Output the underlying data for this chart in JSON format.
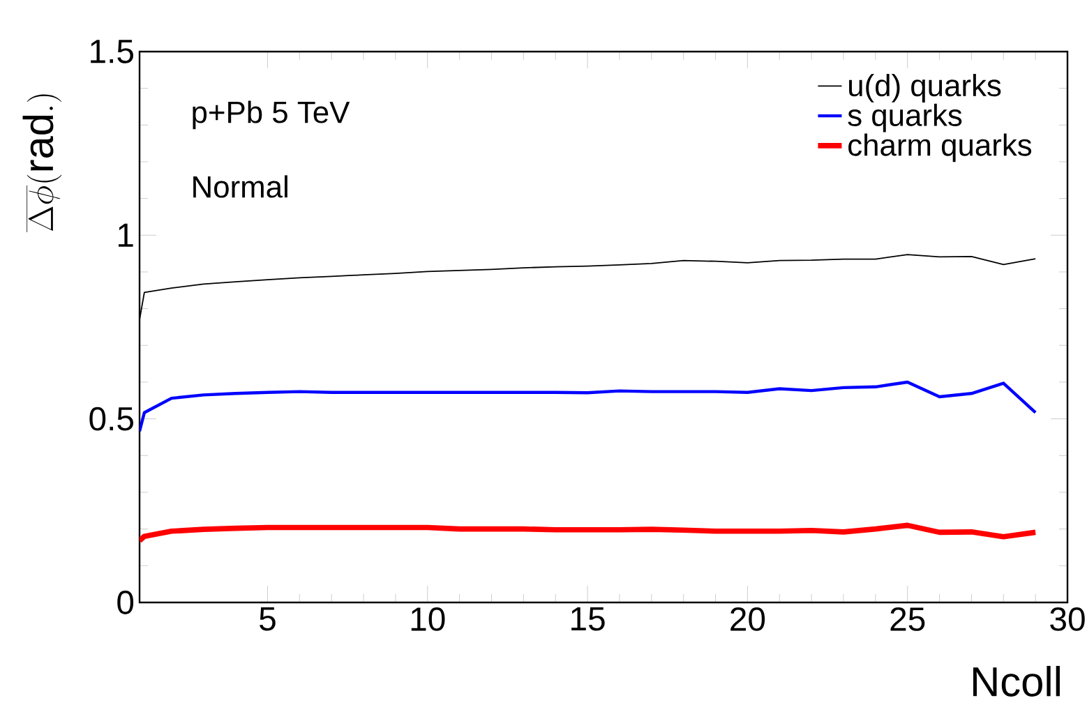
{
  "chart_data": {
    "type": "line",
    "xlabel": "Ncoll",
    "ylabel": "\\overline{\\Delta\\phi}(\\mathrm{rad.})",
    "annotations": [
      "p+Pb    5 TeV",
      "Normal"
    ],
    "x": [
      1,
      1.15,
      2,
      3,
      4,
      5,
      6,
      7,
      8,
      9,
      10,
      11,
      12,
      13,
      14,
      15,
      16,
      17,
      18,
      19,
      20,
      21,
      22,
      23,
      24,
      25,
      26,
      27,
      28,
      29
    ],
    "series": [
      {
        "name": "u(d) quarks",
        "color": "#000000",
        "values": [
          0.77,
          0.844,
          0.856,
          0.867,
          0.873,
          0.879,
          0.884,
          0.888,
          0.892,
          0.896,
          0.901,
          0.904,
          0.907,
          0.911,
          0.914,
          0.916,
          0.919,
          0.923,
          0.931,
          0.929,
          0.925,
          0.931,
          0.932,
          0.935,
          0.935,
          0.947,
          0.941,
          0.942,
          0.92,
          0.936
        ]
      },
      {
        "name": "s quarks",
        "color": "#0000ff",
        "values": [
          0.466,
          0.517,
          0.556,
          0.565,
          0.569,
          0.572,
          0.574,
          0.572,
          0.572,
          0.572,
          0.572,
          0.572,
          0.572,
          0.572,
          0.572,
          0.571,
          0.576,
          0.574,
          0.574,
          0.574,
          0.572,
          0.582,
          0.577,
          0.585,
          0.587,
          0.6,
          0.56,
          0.569,
          0.597,
          0.517
        ]
      },
      {
        "name": "charm quarks",
        "color": "#ff0000",
        "values": [
          0.168,
          0.18,
          0.194,
          0.199,
          0.202,
          0.204,
          0.204,
          0.204,
          0.204,
          0.204,
          0.204,
          0.2,
          0.2,
          0.2,
          0.198,
          0.198,
          0.198,
          0.199,
          0.197,
          0.194,
          0.194,
          0.194,
          0.196,
          0.192,
          0.2,
          0.21,
          0.191,
          0.192,
          0.179,
          0.191
        ]
      }
    ],
    "xlim": [
      1,
      30
    ],
    "xticks": [
      5,
      10,
      15,
      20,
      25,
      30
    ],
    "ylim": [
      0,
      1.5
    ],
    "yticks": [
      0,
      0.5,
      1,
      1.5
    ],
    "grid": false,
    "legend": "top right",
    "line_style": "solid",
    "marker": "none"
  }
}
